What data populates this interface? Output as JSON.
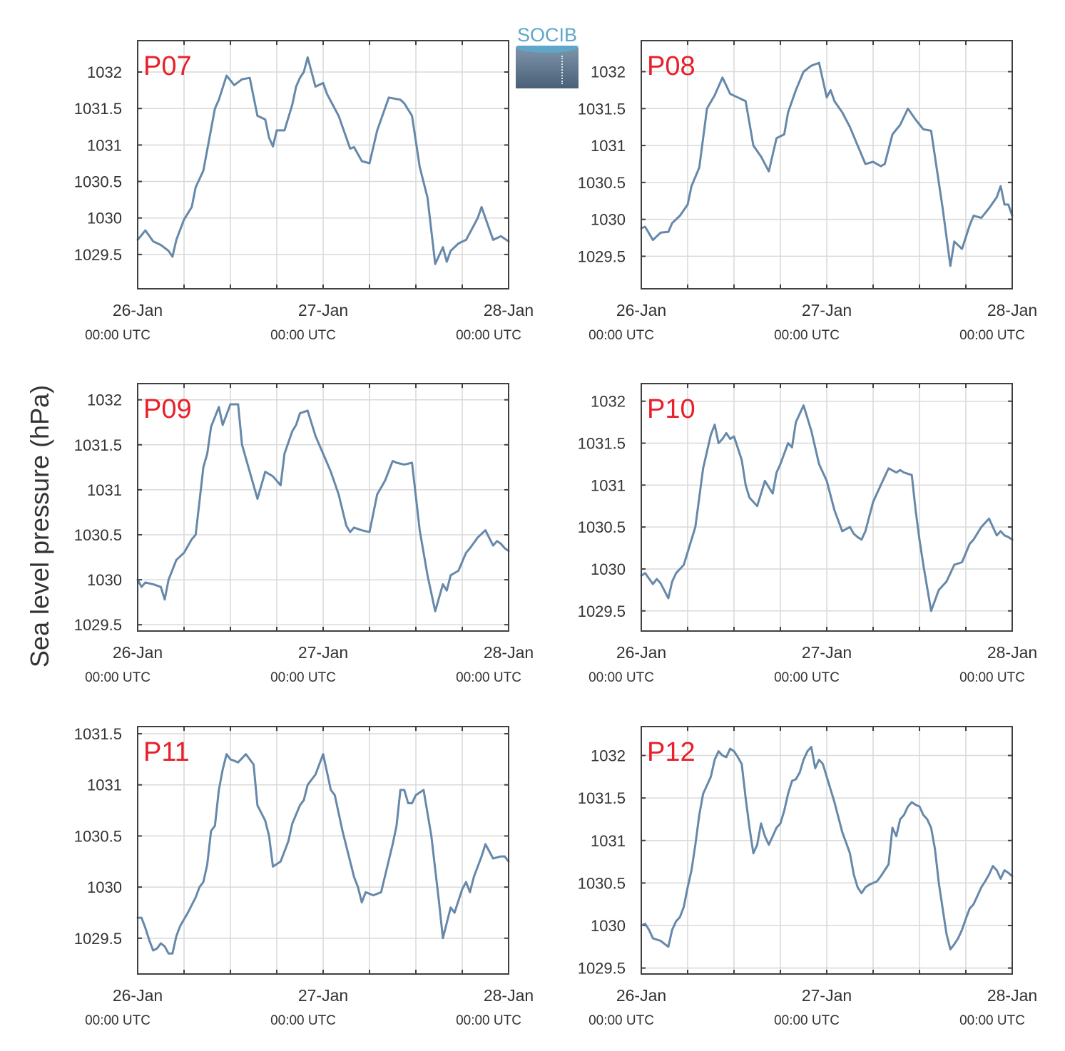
{
  "logo": {
    "text": "SOCIB"
  },
  "ylabel": "Sea level pressure (hPa)",
  "colors": {
    "line": "#6688aa",
    "label": "#e8202a",
    "grid": "#d9d9d9",
    "axis": "#404040",
    "text": "#222222"
  },
  "chart_data": [
    {
      "type": "line",
      "title": "P07",
      "x_range": [
        "26-Jan 00:00 UTC",
        "28-Jan 00:00 UTC"
      ],
      "x_tick_labels": [
        {
          "date": "26-Jan",
          "time": "00:00 UTC"
        },
        {
          "date": "27-Jan",
          "time": "00:00 UTC"
        },
        {
          "date": "28-Jan",
          "time": "00:00 UTC"
        }
      ],
      "y_ticks": [
        "1029.5",
        "1030",
        "1030.5",
        "1031",
        "1031.5",
        "1032"
      ],
      "ylim": [
        1029.03,
        1032.43
      ],
      "grid": true,
      "x_hours": [
        0,
        2,
        4,
        6,
        8,
        9,
        10,
        12,
        14,
        15,
        17,
        20,
        21,
        23,
        25,
        27,
        29,
        31,
        33,
        34,
        35,
        36,
        38,
        40,
        41,
        42,
        43,
        44,
        46,
        48,
        49,
        50,
        52,
        54,
        55,
        56,
        58,
        60,
        62,
        65,
        68,
        69,
        71,
        73,
        75,
        77,
        79,
        80,
        81,
        83,
        85,
        87,
        88,
        89,
        91,
        92,
        94,
        96
      ],
      "values": [
        1029.7,
        1029.83,
        1029.68,
        1029.63,
        1029.55,
        1029.47,
        1029.7,
        1029.98,
        1030.15,
        1030.42,
        1030.65,
        1031.5,
        1031.62,
        1031.95,
        1031.82,
        1031.9,
        1031.92,
        1031.4,
        1031.35,
        1031.1,
        1030.98,
        1031.2,
        1031.2,
        1031.55,
        1031.8,
        1031.92,
        1032.0,
        1032.2,
        1031.8,
        1031.85,
        1031.7,
        1031.6,
        1031.4,
        1031.1,
        1030.95,
        1030.97,
        1030.78,
        1030.75,
        1031.2,
        1031.65,
        1031.62,
        1031.57,
        1031.4,
        1030.7,
        1030.28,
        1029.37,
        1029.6,
        1029.4,
        1029.55,
        1029.65,
        1029.7,
        1029.9,
        1030.0,
        1030.15,
        1029.85,
        1029.7,
        1029.75,
        1029.68
      ]
    },
    {
      "type": "line",
      "title": "P08",
      "x_range": [
        "26-Jan 00:00 UTC",
        "28-Jan 00:00 UTC"
      ],
      "x_tick_labels": [
        {
          "date": "26-Jan",
          "time": "00:00 UTC"
        },
        {
          "date": "27-Jan",
          "time": "00:00 UTC"
        },
        {
          "date": "28-Jan",
          "time": "00:00 UTC"
        }
      ],
      "y_ticks": [
        "1029.5",
        "1030",
        "1030.5",
        "1031",
        "1031.5",
        "1032"
      ],
      "ylim": [
        1029.06,
        1032.42
      ],
      "grid": true,
      "x_hours": [
        0,
        1,
        3,
        5,
        7,
        8,
        10,
        12,
        13,
        15,
        17,
        19,
        21,
        23,
        25,
        27,
        29,
        31,
        33,
        35,
        37,
        38,
        39,
        40,
        42,
        44,
        46,
        48,
        49,
        50,
        52,
        54,
        56,
        58,
        60,
        62,
        63,
        65,
        67,
        69,
        71,
        73,
        75,
        77,
        78,
        80,
        81,
        83,
        85,
        86,
        88,
        90,
        92,
        93,
        94,
        95,
        96
      ],
      "values": [
        1029.88,
        1029.9,
        1029.72,
        1029.82,
        1029.83,
        1029.95,
        1030.05,
        1030.2,
        1030.45,
        1030.7,
        1031.5,
        1031.68,
        1031.92,
        1031.7,
        1031.65,
        1031.6,
        1031.0,
        1030.85,
        1030.65,
        1031.1,
        1031.15,
        1031.45,
        1031.6,
        1031.75,
        1032.0,
        1032.08,
        1032.12,
        1031.65,
        1031.75,
        1031.6,
        1031.45,
        1031.25,
        1031.0,
        1030.75,
        1030.78,
        1030.72,
        1030.75,
        1031.15,
        1031.28,
        1031.5,
        1031.35,
        1031.22,
        1031.2,
        1030.5,
        1030.15,
        1029.37,
        1029.7,
        1029.6,
        1029.92,
        1030.05,
        1030.02,
        1030.15,
        1030.3,
        1030.45,
        1030.2,
        1030.2,
        1030.05
      ]
    },
    {
      "type": "line",
      "title": "P09",
      "x_range": [
        "26-Jan 00:00 UTC",
        "28-Jan 00:00 UTC"
      ],
      "x_tick_labels": [
        {
          "date": "26-Jan",
          "time": "00:00 UTC"
        },
        {
          "date": "27-Jan",
          "time": "00:00 UTC"
        },
        {
          "date": "28-Jan",
          "time": "00:00 UTC"
        }
      ],
      "y_ticks": [
        "1029.5",
        "1030",
        "1030.5",
        "1031",
        "1031.5",
        "1032"
      ],
      "ylim": [
        1029.43,
        1032.18
      ],
      "grid": true,
      "x_hours": [
        0,
        1,
        2,
        4,
        6,
        7,
        8,
        10,
        12,
        14,
        15,
        17,
        18,
        19,
        21,
        22,
        24,
        25,
        26,
        27,
        29,
        31,
        33,
        35,
        36,
        37,
        38,
        40,
        41,
        42,
        44,
        46,
        47,
        49,
        50,
        52,
        54,
        55,
        56,
        58,
        60,
        62,
        64,
        66,
        67,
        69,
        71,
        73,
        75,
        77,
        79,
        80,
        81,
        83,
        85,
        86,
        88,
        90,
        92,
        93,
        94,
        95,
        96
      ],
      "values": [
        1030.0,
        1029.92,
        1029.97,
        1029.95,
        1029.92,
        1029.78,
        1030.0,
        1030.22,
        1030.3,
        1030.45,
        1030.5,
        1031.25,
        1031.4,
        1031.7,
        1031.92,
        1031.72,
        1031.95,
        1031.95,
        1031.95,
        1031.5,
        1031.2,
        1030.9,
        1031.2,
        1031.15,
        1031.1,
        1031.05,
        1031.4,
        1031.65,
        1031.72,
        1031.85,
        1031.88,
        1031.6,
        1031.5,
        1031.3,
        1031.2,
        1030.95,
        1030.6,
        1030.53,
        1030.58,
        1030.55,
        1030.53,
        1030.95,
        1031.1,
        1031.32,
        1031.3,
        1031.28,
        1031.3,
        1030.55,
        1030.05,
        1029.65,
        1029.95,
        1029.88,
        1030.05,
        1030.1,
        1030.3,
        1030.35,
        1030.47,
        1030.55,
        1030.38,
        1030.43,
        1030.4,
        1030.35,
        1030.32
      ]
    },
    {
      "type": "line",
      "title": "P10",
      "x_range": [
        "26-Jan 00:00 UTC",
        "28-Jan 00:00 UTC"
      ],
      "x_tick_labels": [
        {
          "date": "26-Jan",
          "time": "00:00 UTC"
        },
        {
          "date": "27-Jan",
          "time": "00:00 UTC"
        },
        {
          "date": "28-Jan",
          "time": "00:00 UTC"
        }
      ],
      "y_ticks": [
        "1029.5",
        "1030",
        "1030.5",
        "1031",
        "1031.5",
        "1032"
      ],
      "ylim": [
        1029.26,
        1032.21
      ],
      "grid": true,
      "x_hours": [
        0,
        1,
        3,
        4,
        5,
        7,
        8,
        9,
        10,
        11,
        12,
        14,
        16,
        18,
        19,
        20,
        21,
        22,
        23,
        24,
        26,
        27,
        28,
        30,
        32,
        34,
        35,
        36,
        38,
        39,
        40,
        42,
        44,
        46,
        48,
        50,
        52,
        54,
        55,
        56,
        57,
        58,
        60,
        62,
        64,
        66,
        67,
        68,
        70,
        71,
        72,
        73,
        75,
        77,
        79,
        81,
        83,
        85,
        86,
        88,
        90,
        92,
        93,
        94,
        95,
        96
      ],
      "values": [
        1029.92,
        1029.95,
        1029.82,
        1029.88,
        1029.83,
        1029.65,
        1029.85,
        1029.95,
        1030.0,
        1030.05,
        1030.2,
        1030.5,
        1031.2,
        1031.6,
        1031.72,
        1031.5,
        1031.55,
        1031.62,
        1031.55,
        1031.58,
        1031.3,
        1031.0,
        1030.85,
        1030.75,
        1031.05,
        1030.9,
        1031.15,
        1031.25,
        1031.5,
        1031.45,
        1031.75,
        1031.95,
        1031.65,
        1031.25,
        1031.05,
        1030.7,
        1030.45,
        1030.5,
        1030.42,
        1030.38,
        1030.35,
        1030.45,
        1030.8,
        1031.0,
        1031.2,
        1031.15,
        1031.18,
        1031.15,
        1031.12,
        1030.7,
        1030.35,
        1030.05,
        1029.5,
        1029.75,
        1029.85,
        1030.05,
        1030.08,
        1030.3,
        1030.35,
        1030.5,
        1030.6,
        1030.4,
        1030.45,
        1030.4,
        1030.38,
        1030.35
      ]
    },
    {
      "type": "line",
      "title": "P11",
      "x_range": [
        "26-Jan 00:00 UTC",
        "28-Jan 00:00 UTC"
      ],
      "x_tick_labels": [
        {
          "date": "26-Jan",
          "time": "00:00 UTC"
        },
        {
          "date": "27-Jan",
          "time": "00:00 UTC"
        },
        {
          "date": "28-Jan",
          "time": "00:00 UTC"
        }
      ],
      "y_ticks": [
        "1029.5",
        "1030",
        "1030.5",
        "1031",
        "1031.5"
      ],
      "ylim": [
        1029.15,
        1031.57
      ],
      "grid": true,
      "x_hours": [
        0,
        1,
        2,
        3,
        4,
        5,
        6,
        7,
        8,
        9,
        10,
        11,
        13,
        15,
        16,
        17,
        18,
        19,
        20,
        21,
        22,
        23,
        24,
        26,
        28,
        30,
        31,
        33,
        34,
        35,
        37,
        39,
        40,
        42,
        43,
        44,
        46,
        48,
        50,
        51,
        53,
        55,
        56,
        57,
        58,
        59,
        61,
        63,
        66,
        67,
        68,
        69,
        70,
        71,
        72,
        74,
        76,
        78,
        79,
        81,
        82,
        84,
        85,
        86,
        87,
        88,
        89,
        90,
        91,
        92,
        94,
        95,
        96
      ],
      "values": [
        1029.7,
        1029.7,
        1029.6,
        1029.48,
        1029.38,
        1029.4,
        1029.45,
        1029.42,
        1029.35,
        1029.35,
        1029.52,
        1029.62,
        1029.75,
        1029.9,
        1030.0,
        1030.05,
        1030.22,
        1030.55,
        1030.6,
        1030.95,
        1031.15,
        1031.3,
        1031.25,
        1031.22,
        1031.3,
        1031.2,
        1030.8,
        1030.65,
        1030.5,
        1030.2,
        1030.25,
        1030.45,
        1030.62,
        1030.8,
        1030.85,
        1031.0,
        1031.1,
        1031.3,
        1030.95,
        1030.9,
        1030.55,
        1030.25,
        1030.1,
        1030.0,
        1029.85,
        1029.95,
        1029.92,
        1029.95,
        1030.42,
        1030.6,
        1030.95,
        1030.95,
        1030.82,
        1030.82,
        1030.9,
        1030.95,
        1030.5,
        1029.85,
        1029.5,
        1029.8,
        1029.75,
        1029.98,
        1030.05,
        1029.95,
        1030.1,
        1030.2,
        1030.3,
        1030.42,
        1030.35,
        1030.28,
        1030.3,
        1030.3,
        1030.25
      ]
    },
    {
      "type": "line",
      "title": "P12",
      "x_range": [
        "26-Jan 00:00 UTC",
        "28-Jan 00:00 UTC"
      ],
      "x_tick_labels": [
        {
          "date": "26-Jan",
          "time": "00:00 UTC"
        },
        {
          "date": "27-Jan",
          "time": "00:00 UTC"
        },
        {
          "date": "28-Jan",
          "time": "00:00 UTC"
        }
      ],
      "y_ticks": [
        "1029.5",
        "1030",
        "1030.5",
        "1031",
        "1031.5",
        "1032"
      ],
      "ylim": [
        1029.43,
        1032.34
      ],
      "grid": true,
      "x_hours": [
        0,
        1,
        2,
        3,
        5,
        7,
        8,
        9,
        10,
        11,
        12,
        13,
        14,
        15,
        16,
        18,
        19,
        20,
        21,
        22,
        23,
        24,
        25,
        26,
        27,
        28,
        29,
        30,
        31,
        32,
        33,
        34,
        35,
        36,
        37,
        38,
        39,
        40,
        41,
        42,
        43,
        44,
        45,
        46,
        47,
        48,
        49,
        50,
        52,
        54,
        55,
        56,
        57,
        58,
        59,
        60,
        61,
        62,
        63,
        64,
        65,
        66,
        67,
        68,
        69,
        70,
        71,
        72,
        73,
        74,
        75,
        76,
        77,
        78,
        79,
        80,
        81,
        82,
        83,
        84,
        85,
        86,
        87,
        88,
        89,
        90,
        91,
        92,
        93,
        94,
        95,
        96
      ],
      "values": [
        1030.0,
        1030.02,
        1029.95,
        1029.85,
        1029.82,
        1029.75,
        1029.95,
        1030.05,
        1030.1,
        1030.22,
        1030.45,
        1030.65,
        1030.95,
        1031.3,
        1031.55,
        1031.75,
        1031.95,
        1032.05,
        1032.0,
        1031.98,
        1032.08,
        1032.05,
        1031.98,
        1031.9,
        1031.5,
        1031.15,
        1030.85,
        1030.95,
        1031.2,
        1031.05,
        1030.95,
        1031.05,
        1031.15,
        1031.2,
        1031.35,
        1031.55,
        1031.7,
        1031.72,
        1031.8,
        1031.95,
        1032.05,
        1032.1,
        1031.85,
        1031.95,
        1031.9,
        1031.75,
        1031.6,
        1031.45,
        1031.1,
        1030.85,
        1030.6,
        1030.45,
        1030.38,
        1030.45,
        1030.48,
        1030.5,
        1030.52,
        1030.58,
        1030.65,
        1030.72,
        1031.15,
        1031.05,
        1031.25,
        1031.3,
        1031.4,
        1031.45,
        1031.42,
        1031.4,
        1031.3,
        1031.25,
        1031.15,
        1030.9,
        1030.5,
        1030.2,
        1029.9,
        1029.72,
        1029.78,
        1029.85,
        1029.95,
        1030.08,
        1030.2,
        1030.25,
        1030.35,
        1030.45,
        1030.52,
        1030.6,
        1030.7,
        1030.65,
        1030.55,
        1030.65,
        1030.62,
        1030.58
      ]
    }
  ]
}
